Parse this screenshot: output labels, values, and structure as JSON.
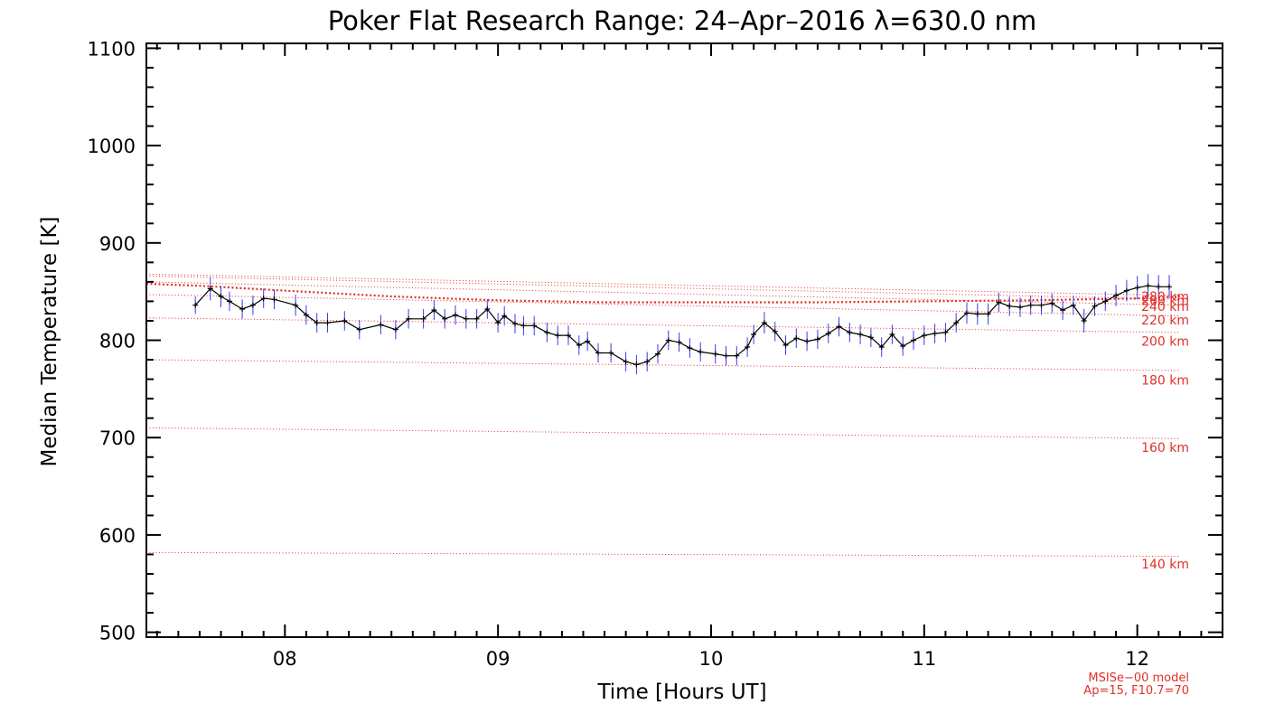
{
  "chart_data": {
    "type": "line",
    "title": "Poker Flat Research Range: 24–Apr–2016 λ=630.0 nm",
    "xlabel": "Time [Hours UT]",
    "ylabel": "Median Temperature [K]",
    "xlim": [
      7.35,
      12.4
    ],
    "ylim": [
      495,
      1105
    ],
    "x_ticks": [
      8,
      9,
      10,
      11,
      12
    ],
    "x_tick_labels": [
      "08",
      "09",
      "10",
      "11",
      "12"
    ],
    "y_ticks": [
      500,
      600,
      700,
      800,
      900,
      1000,
      1100
    ],
    "y_tick_labels": [
      "500",
      "600",
      "700",
      "800",
      "900",
      "1000",
      "1100"
    ],
    "series": [
      {
        "name": "Median temperature",
        "color": "#000000",
        "error_color": "#3a3af5",
        "x": [
          7.58,
          7.65,
          7.7,
          7.74,
          7.8,
          7.85,
          7.9,
          7.95,
          8.05,
          8.1,
          8.15,
          8.2,
          8.28,
          8.35,
          8.45,
          8.52,
          8.58,
          8.65,
          8.7,
          8.75,
          8.8,
          8.85,
          8.9,
          8.95,
          9.0,
          9.03,
          9.08,
          9.12,
          9.17,
          9.23,
          9.28,
          9.33,
          9.38,
          9.42,
          9.47,
          9.53,
          9.6,
          9.65,
          9.7,
          9.75,
          9.8,
          9.85,
          9.9,
          9.95,
          10.02,
          10.07,
          10.12,
          10.17,
          10.2,
          10.25,
          10.3,
          10.35,
          10.4,
          10.45,
          10.5,
          10.55,
          10.6,
          10.65,
          10.7,
          10.75,
          10.8,
          10.85,
          10.9,
          10.95,
          11.0,
          11.05,
          11.1,
          11.15,
          11.2,
          11.25,
          11.3,
          11.35,
          11.4,
          11.45,
          11.5,
          11.55,
          11.6,
          11.65,
          11.7,
          11.75,
          11.8,
          11.85,
          11.9,
          11.95,
          12.0,
          12.05,
          12.1,
          12.15
        ],
        "y": [
          836,
          853,
          845,
          840,
          832,
          836,
          843,
          842,
          836,
          826,
          818,
          818,
          820,
          811,
          816,
          811,
          822,
          822,
          831,
          822,
          826,
          822,
          822,
          832,
          818,
          825,
          817,
          815,
          815,
          808,
          805,
          805,
          795,
          799,
          787,
          787,
          778,
          775,
          778,
          786,
          800,
          798,
          792,
          788,
          786,
          784,
          784,
          793,
          806,
          818,
          809,
          795,
          802,
          799,
          801,
          807,
          814,
          808,
          806,
          803,
          793,
          806,
          794,
          800,
          805,
          807,
          808,
          818,
          828,
          827,
          827,
          839,
          835,
          834,
          836,
          836,
          838,
          831,
          836,
          820,
          835,
          840,
          846,
          851,
          854,
          856,
          855,
          855
        ],
        "error": [
          9,
          12,
          11,
          10,
          10,
          10,
          10,
          10,
          11,
          10,
          10,
          10,
          10,
          10,
          10,
          10,
          10,
          10,
          10,
          10,
          10,
          10,
          10,
          10,
          10,
          10,
          10,
          10,
          10,
          10,
          10,
          10,
          10,
          10,
          10,
          10,
          10,
          10,
          10,
          10,
          10,
          10,
          10,
          10,
          10,
          10,
          10,
          10,
          10,
          11,
          10,
          10,
          10,
          10,
          10,
          10,
          10,
          10,
          10,
          10,
          10,
          10,
          10,
          10,
          10,
          10,
          10,
          10,
          11,
          11,
          11,
          10,
          10,
          10,
          10,
          10,
          10,
          10,
          10,
          12,
          10,
          10,
          11,
          11,
          12,
          12,
          12,
          12
        ]
      }
    ],
    "model_lines": [
      {
        "label": "140 km",
        "color": "#e0302a",
        "x": [
          7.35,
          12.2
        ],
        "y": [
          582,
          578
        ]
      },
      {
        "label": "160 km",
        "color": "#e0302a",
        "x": [
          7.35,
          12.2
        ],
        "y": [
          710,
          699
        ]
      },
      {
        "label": "180 km",
        "color": "#e0302a",
        "x": [
          7.35,
          12.2
        ],
        "y": [
          780,
          769
        ]
      },
      {
        "label": "200 km",
        "color": "#e0302a",
        "x": [
          7.35,
          12.2
        ],
        "y": [
          823,
          808
        ]
      },
      {
        "label": "220 km",
        "color": "#e0302a",
        "x": [
          7.35,
          12.2
        ],
        "y": [
          847,
          825
        ]
      },
      {
        "label": "240 km",
        "color": "#e0302a",
        "x": [
          7.35,
          12.2
        ],
        "y": [
          860,
          836
        ]
      },
      {
        "label": "MSIS",
        "color": "#e0302a",
        "x": [
          7.35,
          7.6,
          8.0,
          8.5,
          9.0,
          9.5,
          10.0,
          10.5,
          11.0,
          11.5,
          12.0,
          12.2
        ],
        "y": [
          858,
          856,
          851,
          845,
          841,
          839,
          839,
          839,
          840,
          841,
          843,
          845
        ]
      },
      {
        "label": "260 km",
        "color": "#e0302a",
        "x": [
          7.35,
          12.2
        ],
        "y": [
          866,
          842
        ]
      },
      {
        "label": "280 km",
        "color": "#e0302a",
        "x": [
          7.35,
          12.2
        ],
        "y": [
          868,
          846
        ]
      }
    ],
    "model_labels": [
      {
        "text": "140 km",
        "y": 570
      },
      {
        "text": "160 km",
        "y": 690
      },
      {
        "text": "180 km",
        "y": 759
      },
      {
        "text": "200 km",
        "y": 799
      },
      {
        "text": "220 km",
        "y": 821
      },
      {
        "text": "240 km",
        "y": 835
      },
      {
        "text": "260 km",
        "y": 841
      },
      {
        "text": "280 km",
        "y": 845
      }
    ],
    "annotations": [
      "MSISe−00 model",
      "Ap=15, F10.7=70"
    ]
  }
}
